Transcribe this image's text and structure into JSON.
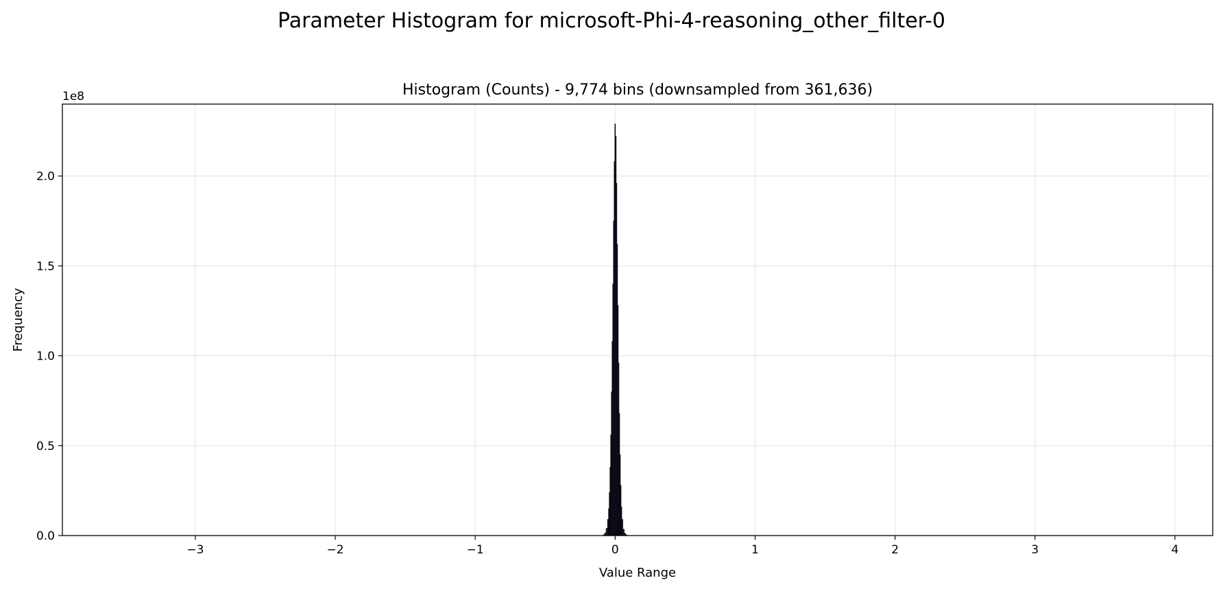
{
  "chart_data": {
    "type": "bar",
    "suptitle": "Parameter Histogram for microsoft-Phi-4-reasoning_other_filter-0",
    "title": "Histogram (Counts) - 9,774 bins (downsampled from 361,636)",
    "xlabel": "Value Range",
    "ylabel": "Frequency",
    "y_offset_label": "1e8",
    "xlim": [
      -3.95,
      4.27
    ],
    "ylim": [
      0,
      240000000.0
    ],
    "x_ticks": [
      -3,
      -2,
      -1,
      0,
      1,
      2,
      3,
      4
    ],
    "x_tick_labels": [
      "−3",
      "−2",
      "−1",
      "0",
      "1",
      "2",
      "3",
      "4"
    ],
    "y_ticks": [
      0,
      50000000.0,
      100000000.0,
      150000000.0,
      200000000.0
    ],
    "y_tick_labels": [
      "0.0",
      "0.5",
      "1.0",
      "1.5",
      "2.0"
    ],
    "grid": true,
    "bar_color": "#1f1f3a",
    "bar_edge_color": "#000000",
    "x": [
      -0.08,
      -0.07,
      -0.06,
      -0.05,
      -0.045,
      -0.04,
      -0.035,
      -0.03,
      -0.025,
      -0.02,
      -0.015,
      -0.01,
      -0.005,
      0,
      0.005,
      0.01,
      0.015,
      0.02,
      0.025,
      0.03,
      0.035,
      0.04,
      0.045,
      0.05,
      0.06,
      0.07,
      0.08
    ],
    "values": [
      500000,
      1500000,
      4000000,
      9000000,
      15000000,
      24000000,
      38000000,
      56000000,
      80000000,
      108000000,
      140000000,
      175000000,
      208000000,
      229000000,
      222000000,
      196000000,
      162000000,
      128000000,
      96000000,
      68000000,
      45000000,
      28000000,
      16000000,
      9000000,
      3500000,
      1200000,
      400000
    ]
  }
}
